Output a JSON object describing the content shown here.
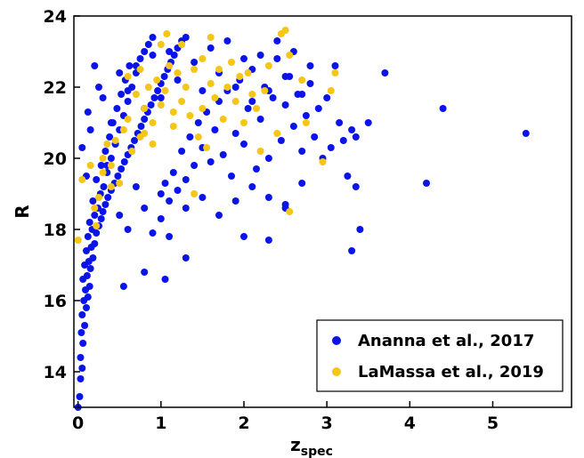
{
  "chart_data": {
    "type": "scatter",
    "title": "",
    "xlabel": "z",
    "xlabel_sub": "spec",
    "ylabel": "R",
    "xlim": [
      -0.05,
      5.95
    ],
    "ylim": [
      13,
      24
    ],
    "xticks": [
      0,
      1,
      2,
      3,
      4,
      5
    ],
    "yticks": [
      14,
      16,
      18,
      20,
      22,
      24
    ],
    "grid": false,
    "legend_position": "lower-right",
    "series": [
      {
        "name": "Ananna et al., 2017",
        "color": "#0a14e6",
        "points": [
          [
            0.0,
            13.0
          ],
          [
            0.02,
            13.3
          ],
          [
            0.03,
            13.8
          ],
          [
            0.05,
            14.1
          ],
          [
            0.03,
            14.4
          ],
          [
            0.06,
            14.8
          ],
          [
            0.04,
            15.1
          ],
          [
            0.08,
            15.3
          ],
          [
            0.05,
            15.6
          ],
          [
            0.1,
            15.8
          ],
          [
            0.07,
            16.0
          ],
          [
            0.12,
            16.1
          ],
          [
            0.09,
            16.3
          ],
          [
            0.14,
            16.4
          ],
          [
            0.06,
            16.6
          ],
          [
            0.11,
            16.7
          ],
          [
            0.15,
            16.9
          ],
          [
            0.08,
            17.0
          ],
          [
            0.13,
            17.1
          ],
          [
            0.18,
            17.2
          ],
          [
            0.1,
            17.4
          ],
          [
            0.16,
            17.5
          ],
          [
            0.2,
            17.6
          ],
          [
            0.12,
            17.8
          ],
          [
            0.22,
            17.9
          ],
          [
            0.17,
            18.0
          ],
          [
            0.25,
            18.1
          ],
          [
            0.14,
            18.2
          ],
          [
            0.28,
            18.3
          ],
          [
            0.2,
            18.4
          ],
          [
            0.3,
            18.5
          ],
          [
            0.24,
            18.6
          ],
          [
            0.33,
            18.7
          ],
          [
            0.18,
            18.8
          ],
          [
            0.36,
            18.9
          ],
          [
            0.27,
            19.0
          ],
          [
            0.4,
            19.1
          ],
          [
            0.31,
            19.2
          ],
          [
            0.44,
            19.3
          ],
          [
            0.22,
            19.4
          ],
          [
            0.48,
            19.5
          ],
          [
            0.35,
            19.6
          ],
          [
            0.52,
            19.7
          ],
          [
            0.28,
            19.8
          ],
          [
            0.56,
            19.9
          ],
          [
            0.4,
            20.0
          ],
          [
            0.6,
            20.1
          ],
          [
            0.33,
            20.2
          ],
          [
            0.64,
            20.3
          ],
          [
            0.45,
            20.4
          ],
          [
            0.68,
            20.5
          ],
          [
            0.38,
            20.6
          ],
          [
            0.72,
            20.7
          ],
          [
            0.5,
            20.8
          ],
          [
            0.76,
            20.9
          ],
          [
            0.42,
            21.0
          ],
          [
            0.8,
            21.1
          ],
          [
            0.55,
            21.2
          ],
          [
            0.84,
            21.3
          ],
          [
            0.47,
            21.4
          ],
          [
            0.88,
            21.5
          ],
          [
            0.6,
            21.6
          ],
          [
            0.92,
            21.7
          ],
          [
            0.52,
            21.8
          ],
          [
            0.96,
            21.9
          ],
          [
            0.65,
            22.0
          ],
          [
            1.0,
            22.1
          ],
          [
            0.57,
            22.2
          ],
          [
            1.04,
            22.3
          ],
          [
            0.7,
            22.4
          ],
          [
            1.08,
            22.5
          ],
          [
            0.62,
            22.6
          ],
          [
            1.12,
            22.7
          ],
          [
            0.75,
            22.8
          ],
          [
            1.16,
            22.9
          ],
          [
            0.8,
            23.0
          ],
          [
            1.2,
            23.1
          ],
          [
            0.85,
            23.2
          ],
          [
            1.25,
            23.3
          ],
          [
            0.9,
            23.4
          ],
          [
            1.0,
            19.0
          ],
          [
            1.05,
            19.3
          ],
          [
            1.1,
            18.8
          ],
          [
            1.15,
            19.6
          ],
          [
            1.2,
            19.1
          ],
          [
            1.25,
            20.2
          ],
          [
            1.3,
            19.4
          ],
          [
            1.35,
            20.6
          ],
          [
            1.4,
            19.8
          ],
          [
            1.45,
            21.0
          ],
          [
            1.5,
            20.3
          ],
          [
            1.55,
            21.3
          ],
          [
            1.6,
            19.9
          ],
          [
            1.65,
            20.8
          ],
          [
            1.7,
            21.6
          ],
          [
            1.75,
            20.1
          ],
          [
            1.8,
            21.9
          ],
          [
            1.85,
            19.5
          ],
          [
            1.9,
            20.7
          ],
          [
            1.95,
            22.2
          ],
          [
            2.0,
            20.4
          ],
          [
            2.05,
            21.4
          ],
          [
            2.1,
            22.5
          ],
          [
            2.15,
            19.7
          ],
          [
            2.2,
            21.1
          ],
          [
            2.25,
            22.0
          ],
          [
            2.3,
            20.0
          ],
          [
            2.35,
            21.7
          ],
          [
            2.4,
            22.8
          ],
          [
            2.45,
            20.5
          ],
          [
            2.5,
            21.5
          ],
          [
            2.55,
            22.3
          ],
          [
            2.6,
            20.9
          ],
          [
            2.65,
            21.8
          ],
          [
            2.7,
            20.2
          ],
          [
            2.75,
            21.2
          ],
          [
            2.8,
            22.1
          ],
          [
            2.85,
            20.6
          ],
          [
            2.9,
            21.4
          ],
          [
            2.95,
            20.0
          ],
          [
            3.0,
            21.7
          ],
          [
            3.05,
            20.3
          ],
          [
            3.1,
            22.6
          ],
          [
            3.15,
            21.0
          ],
          [
            3.2,
            20.5
          ],
          [
            3.25,
            19.5
          ],
          [
            3.3,
            20.8
          ],
          [
            3.35,
            19.2
          ],
          [
            3.4,
            18.0
          ],
          [
            0.3,
            21.7
          ],
          [
            0.4,
            21.0
          ],
          [
            0.5,
            22.4
          ],
          [
            0.6,
            21.9
          ],
          [
            0.7,
            22.6
          ],
          [
            0.8,
            21.4
          ],
          [
            0.9,
            22.9
          ],
          [
            1.0,
            21.7
          ],
          [
            1.1,
            23.0
          ],
          [
            1.2,
            22.2
          ],
          [
            1.3,
            23.4
          ],
          [
            1.4,
            22.7
          ],
          [
            1.5,
            21.9
          ],
          [
            1.6,
            23.1
          ],
          [
            1.7,
            22.4
          ],
          [
            1.8,
            23.3
          ],
          [
            1.9,
            22.0
          ],
          [
            2.0,
            22.8
          ],
          [
            2.1,
            21.6
          ],
          [
            2.2,
            22.9
          ],
          [
            2.3,
            21.9
          ],
          [
            2.4,
            23.3
          ],
          [
            2.5,
            22.3
          ],
          [
            2.6,
            23.0
          ],
          [
            2.7,
            21.8
          ],
          [
            2.8,
            22.6
          ],
          [
            0.5,
            18.4
          ],
          [
            0.6,
            18.0
          ],
          [
            0.7,
            19.2
          ],
          [
            0.8,
            18.6
          ],
          [
            0.9,
            17.9
          ],
          [
            1.0,
            18.3
          ],
          [
            1.1,
            17.8
          ],
          [
            1.3,
            18.6
          ],
          [
            1.5,
            18.9
          ],
          [
            1.7,
            18.4
          ],
          [
            1.9,
            18.8
          ],
          [
            2.1,
            19.2
          ],
          [
            2.3,
            18.9
          ],
          [
            2.5,
            18.6
          ],
          [
            2.7,
            19.3
          ],
          [
            0.55,
            16.4
          ],
          [
            1.05,
            16.6
          ],
          [
            1.3,
            17.2
          ],
          [
            0.8,
            16.8
          ],
          [
            2.0,
            17.8
          ],
          [
            2.3,
            17.7
          ],
          [
            2.5,
            18.7
          ],
          [
            0.2,
            22.6
          ],
          [
            0.25,
            22.0
          ],
          [
            0.45,
            20.4
          ],
          [
            0.35,
            19.8
          ],
          [
            0.15,
            20.8
          ],
          [
            0.1,
            19.5
          ],
          [
            0.05,
            20.3
          ],
          [
            0.12,
            21.3
          ],
          [
            3.3,
            17.4
          ],
          [
            3.7,
            22.4
          ],
          [
            4.4,
            21.4
          ],
          [
            4.2,
            19.3
          ],
          [
            5.4,
            20.7
          ],
          [
            3.5,
            21.0
          ],
          [
            3.35,
            20.6
          ]
        ]
      },
      {
        "name": "LaMassa et al., 2019",
        "color": "#f5c518",
        "points": [
          [
            0.0,
            17.7
          ],
          [
            0.05,
            19.4
          ],
          [
            0.15,
            19.8
          ],
          [
            0.2,
            18.6
          ],
          [
            0.22,
            18.1
          ],
          [
            0.25,
            18.9
          ],
          [
            0.3,
            19.6
          ],
          [
            0.3,
            20.0
          ],
          [
            0.35,
            20.4
          ],
          [
            0.4,
            19.2
          ],
          [
            0.45,
            20.5
          ],
          [
            0.5,
            19.3
          ],
          [
            0.55,
            20.8
          ],
          [
            0.6,
            21.1
          ],
          [
            0.6,
            22.3
          ],
          [
            0.65,
            20.2
          ],
          [
            0.7,
            21.8
          ],
          [
            0.75,
            22.5
          ],
          [
            0.75,
            20.6
          ],
          [
            0.8,
            21.4
          ],
          [
            0.85,
            22.0
          ],
          [
            0.9,
            20.4
          ],
          [
            0.9,
            21.0
          ],
          [
            0.95,
            22.2
          ],
          [
            1.0,
            21.5
          ],
          [
            1.0,
            23.2
          ],
          [
            1.05,
            21.9
          ],
          [
            1.07,
            23.5
          ],
          [
            1.1,
            22.6
          ],
          [
            1.15,
            20.9
          ],
          [
            1.15,
            21.3
          ],
          [
            1.2,
            22.4
          ],
          [
            1.25,
            23.2
          ],
          [
            1.25,
            21.6
          ],
          [
            1.3,
            22.0
          ],
          [
            1.35,
            21.2
          ],
          [
            1.4,
            22.5
          ],
          [
            1.45,
            20.6
          ],
          [
            1.5,
            22.8
          ],
          [
            1.5,
            21.4
          ],
          [
            1.55,
            20.3
          ],
          [
            1.6,
            22.1
          ],
          [
            1.6,
            23.4
          ],
          [
            1.65,
            21.7
          ],
          [
            1.7,
            22.5
          ],
          [
            1.75,
            21.1
          ],
          [
            1.8,
            22.0
          ],
          [
            1.85,
            22.7
          ],
          [
            1.9,
            21.6
          ],
          [
            1.95,
            22.3
          ],
          [
            2.0,
            21.0
          ],
          [
            2.05,
            22.4
          ],
          [
            2.1,
            21.8
          ],
          [
            2.15,
            21.4
          ],
          [
            2.2,
            20.2
          ],
          [
            2.25,
            21.9
          ],
          [
            2.3,
            22.6
          ],
          [
            2.4,
            20.7
          ],
          [
            2.45,
            23.5
          ],
          [
            2.5,
            23.6
          ],
          [
            2.55,
            22.9
          ],
          [
            2.7,
            22.2
          ],
          [
            2.75,
            21.0
          ],
          [
            2.95,
            19.9
          ],
          [
            3.05,
            21.9
          ],
          [
            3.1,
            22.4
          ],
          [
            2.55,
            18.5
          ],
          [
            1.4,
            19.0
          ],
          [
            0.8,
            20.7
          ],
          [
            0.4,
            19.8
          ]
        ]
      }
    ]
  }
}
